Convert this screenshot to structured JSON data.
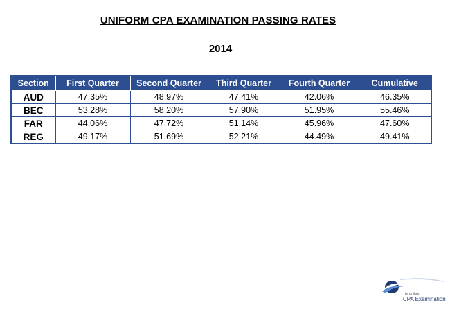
{
  "title": "UNIFORM CPA EXAMINATION PASSING RATES",
  "year": "2014",
  "table": {
    "headers": [
      "Section",
      "First Quarter",
      "Second Quarter",
      "Third Quarter",
      "Fourth Quarter",
      "Cumulative"
    ],
    "rows": [
      [
        "AUD",
        "47.35%",
        "48.97%",
        "47.41%",
        "42.06%",
        "46.35%"
      ],
      [
        "BEC",
        "53.28%",
        "58.20%",
        "57.90%",
        "51.95%",
        "55.46%"
      ],
      [
        "FAR",
        "44.06%",
        "47.72%",
        "51.14%",
        "45.96%",
        "47.60%"
      ],
      [
        "REG",
        "49.17%",
        "51.69%",
        "52.21%",
        "44.49%",
        "49.41%"
      ]
    ]
  },
  "logo": {
    "small_text": "The Uniform",
    "big_text": "CPA Examination"
  },
  "colors": {
    "header_bg": "#2e4e92",
    "logo_blue": "#1f3a6e"
  }
}
